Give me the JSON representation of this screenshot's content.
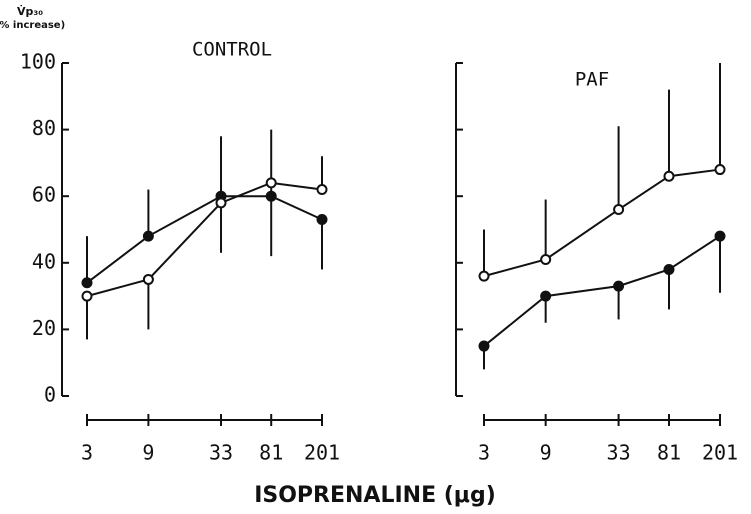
{
  "xlabel": "ISOPRENALINE (μg)",
  "chart_data": [
    {
      "type": "line",
      "title": "CONTROL",
      "ylabel_lines": [
        "V̇p₃₀",
        "(% increase)"
      ],
      "x": [
        3,
        9,
        33,
        81,
        201
      ],
      "xlog": true,
      "xlim": [
        3,
        201
      ],
      "xticks": [
        3,
        9,
        33,
        81,
        201
      ],
      "ylim": [
        0,
        100
      ],
      "yticks": [
        0,
        20,
        40,
        60,
        80,
        100
      ],
      "ytick_labels": true,
      "series": [
        {
          "marker": "filled",
          "color": "#111111",
          "values": [
            34,
            48,
            60,
            60,
            53
          ],
          "err_up": [
            14,
            14,
            18,
            20,
            null
          ],
          "err_down": [
            null,
            null,
            null,
            18,
            15
          ]
        },
        {
          "marker": "open",
          "color": "#111111",
          "values": [
            30,
            35,
            58,
            64,
            62
          ],
          "err_up": [
            null,
            null,
            null,
            null,
            10
          ],
          "err_down": [
            13,
            15,
            15,
            null,
            null
          ]
        }
      ]
    },
    {
      "type": "line",
      "title": "PAF",
      "x": [
        3,
        9,
        33,
        81,
        201
      ],
      "xlog": true,
      "xlim": [
        3,
        201
      ],
      "xticks": [
        3,
        9,
        33,
        81,
        201
      ],
      "ylim": [
        0,
        100
      ],
      "yticks": [
        0,
        20,
        40,
        60,
        80,
        100
      ],
      "ytick_labels": false,
      "series": [
        {
          "marker": "filled",
          "color": "#111111",
          "values": [
            15,
            30,
            33,
            38,
            48
          ],
          "err_up": [
            null,
            null,
            null,
            null,
            null
          ],
          "err_down": [
            7,
            8,
            10,
            12,
            17
          ]
        },
        {
          "marker": "open",
          "color": "#111111",
          "values": [
            36,
            41,
            56,
            66,
            68
          ],
          "err_up": [
            14,
            18,
            25,
            26,
            32
          ],
          "err_down": [
            null,
            null,
            null,
            null,
            null
          ]
        }
      ]
    }
  ]
}
